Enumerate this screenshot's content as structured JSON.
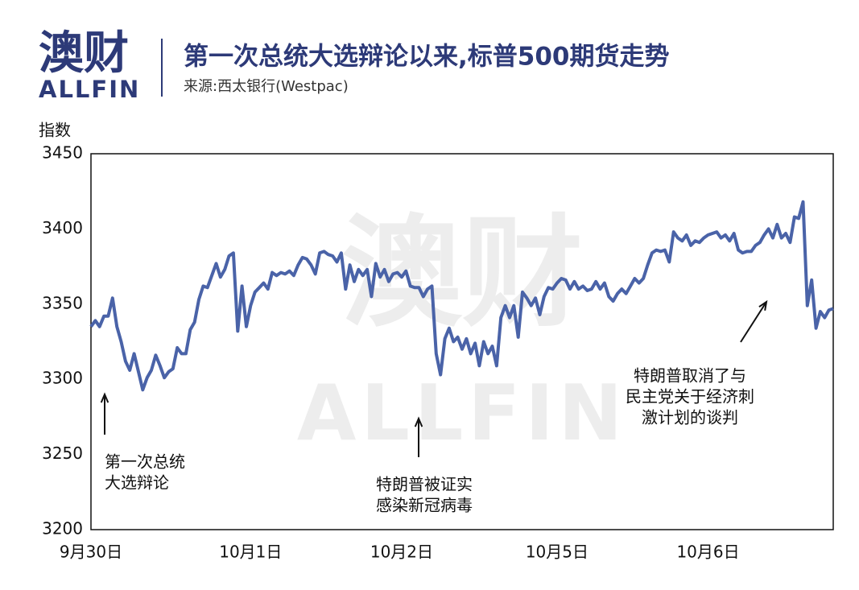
{
  "chart_data": {
    "type": "line",
    "brand": {
      "name": "澳财",
      "latin": "ALLFIN"
    },
    "title": "第一次总统大选辩论以来,标普500期货走势",
    "subtitle": "来源:西太银行(Westpac)",
    "y_label": "指数",
    "color": "#4a63a8",
    "grid": false,
    "ylim": [
      3200,
      3450
    ],
    "yticks": [
      3200,
      3250,
      3300,
      3350,
      3400,
      3450
    ],
    "categories": [
      "9月30日",
      null,
      null,
      null,
      null,
      null,
      null,
      null,
      null,
      null,
      null,
      null,
      null,
      null,
      null,
      null,
      null,
      null,
      null,
      null,
      null,
      null,
      null,
      null,
      null,
      null,
      null,
      null,
      null,
      null,
      null,
      null,
      null,
      null,
      null,
      null,
      null,
      "10月1日",
      null,
      null,
      null,
      null,
      null,
      null,
      null,
      null,
      null,
      null,
      null,
      null,
      null,
      null,
      null,
      null,
      null,
      null,
      null,
      null,
      null,
      null,
      null,
      null,
      null,
      null,
      null,
      null,
      null,
      null,
      null,
      null,
      null,
      null,
      "10月2日",
      null,
      null,
      null,
      null,
      null,
      null,
      null,
      null,
      null,
      null,
      null,
      null,
      null,
      null,
      null,
      null,
      null,
      null,
      null,
      null,
      null,
      null,
      null,
      null,
      null,
      null,
      null,
      null,
      null,
      null,
      null,
      null,
      null,
      null,
      null,
      "10月5日",
      null,
      null,
      null,
      null,
      null,
      null,
      null,
      null,
      null,
      null,
      null,
      null,
      null,
      null,
      null,
      null,
      null,
      null,
      null,
      null,
      null,
      null,
      null,
      null,
      null,
      null,
      null,
      null,
      null,
      null,
      null,
      null,
      null,
      null,
      "10月6日",
      null,
      null,
      null,
      null,
      null,
      null,
      null,
      null,
      null,
      null,
      null,
      null,
      null,
      null,
      null,
      null,
      null,
      null,
      null,
      null,
      null,
      null,
      null,
      null,
      null,
      null,
      null,
      null,
      null
    ],
    "values": [
      3335,
      3339,
      3335,
      3342,
      3342,
      3354,
      3335,
      3325,
      3312,
      3306,
      3317,
      3305,
      3293,
      3301,
      3306,
      3316,
      3309,
      3301,
      3305,
      3307,
      3321,
      3317,
      3317,
      3333,
      3338,
      3353,
      3362,
      3361,
      3369,
      3377,
      3368,
      3373,
      3382,
      3384,
      3332,
      3362,
      3335,
      3349,
      3358,
      3361,
      3364,
      3360,
      3371,
      3369,
      3371,
      3370,
      3372,
      3369,
      3376,
      3381,
      3380,
      3376,
      3370,
      3384,
      3385,
      3383,
      3382,
      3378,
      3384,
      3360,
      3376,
      3365,
      3373,
      3369,
      3373,
      3355,
      3377,
      3368,
      3373,
      3365,
      3370,
      3371,
      3368,
      3372,
      3362,
      3361,
      3361,
      3355,
      3360,
      3362,
      3317,
      3303,
      3327,
      3334,
      3325,
      3328,
      3320,
      3327,
      3317,
      3324,
      3309,
      3325,
      3317,
      3322,
      3309,
      3341,
      3349,
      3341,
      3349,
      3328,
      3358,
      3354,
      3349,
      3354,
      3343,
      3355,
      3361,
      3360,
      3364,
      3367,
      3366,
      3360,
      3365,
      3360,
      3362,
      3359,
      3360,
      3365,
      3360,
      3364,
      3355,
      3352,
      3357,
      3360,
      3357,
      3362,
      3367,
      3364,
      3367,
      3376,
      3384,
      3386,
      3385,
      3386,
      3378,
      3398,
      3394,
      3392,
      3396,
      3389,
      3392,
      3391,
      3394,
      3396,
      3397,
      3398,
      3394,
      3396,
      3392,
      3397,
      3386,
      3384,
      3385,
      3385,
      3389,
      3391,
      3396,
      3400,
      3394,
      3403,
      3394,
      3397,
      3391,
      3408,
      3407,
      3418,
      3349,
      3366,
      3334,
      3345,
      3341,
      3346,
      3347
    ],
    "annotations": [
      {
        "lines": [
          "第一次总统",
          "大选辩论"
        ]
      },
      {
        "lines": [
          "特朗普被证实",
          "感染新冠病毒"
        ]
      },
      {
        "lines": [
          "特朗普取消了与",
          "民主党关于经济刺",
          "激计划的谈判"
        ]
      }
    ]
  }
}
